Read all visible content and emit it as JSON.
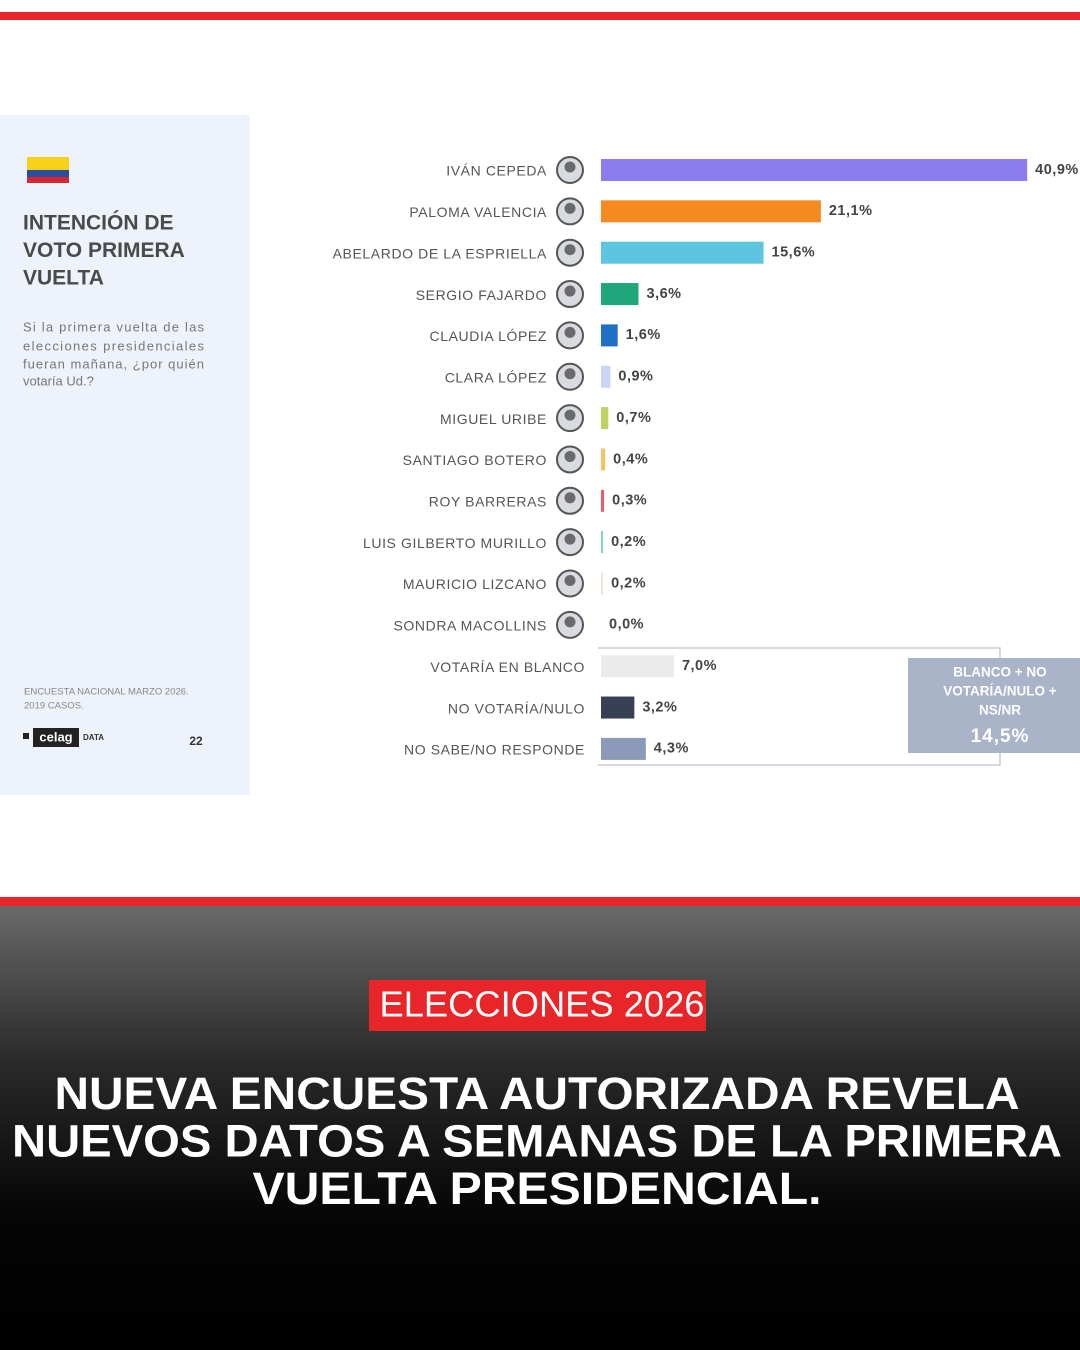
{
  "chart_data": {
    "type": "bar",
    "orientation": "horizontal",
    "categories": [
      "IVÁN CEPEDA",
      "PALOMA VALENCIA",
      "ABELARDO DE LA ESPRIELLA",
      "SERGIO FAJARDO",
      "CLAUDIA LÓPEZ",
      "CLARA LÓPEZ",
      "MIGUEL URIBE",
      "SANTIAGO BOTERO",
      "ROY BARRERAS",
      "LUIS GILBERTO MURILLO",
      "MAURICIO LIZCANO",
      "SONDRA MACOLLINS",
      "VOTARÍA EN BLANCO",
      "NO VOTARÍA/NULO",
      "NO SABE/NO RESPONDE"
    ],
    "values": [
      40.9,
      21.1,
      15.6,
      3.6,
      1.6,
      0.9,
      0.7,
      0.4,
      0.3,
      0.2,
      0.2,
      0.0,
      7.0,
      3.2,
      4.3
    ],
    "value_labels": [
      "40,9%",
      "21,1%",
      "15,6%",
      "3,6%",
      "1,6%",
      "0,9%",
      "0,7%",
      "0,4%",
      "0,3%",
      "0,2%",
      "0,2%",
      "0,0%",
      "7,0%",
      "3,2%",
      "4,3%"
    ],
    "colors": [
      "#8b7cf0",
      "#f58a1f",
      "#5cc6e0",
      "#1fa67a",
      "#1f6fc4",
      "#c9d5f5",
      "#bcd35f",
      "#f4c262",
      "#e0606f",
      "#86d3c2",
      "#f1e2d3",
      "#cccccc",
      "#ebebeb",
      "#374055",
      "#8a9ab8"
    ]
  },
  "panel": {
    "title_lines": [
      "INTENCIÓN DE",
      "VOTO PRIMERA",
      "VUELTA"
    ],
    "subtitle_lines": [
      "Si la primera vuelta de las",
      "elecciones presidenciales",
      "fueran mañana, ¿por quién",
      "votaría Ud.?"
    ],
    "source_lines": [
      "ENCUESTA NACIONAL MARZO 2026.",
      "2019 CASOS."
    ],
    "logo": "celag",
    "logo_suffix": "DATA",
    "page_number": "22"
  },
  "annotation": {
    "lines": [
      "BLANCO + NO",
      "VOTARÍA/NULO +",
      "NS/NR"
    ],
    "value_label": "14,5%"
  },
  "tag": "ELECCIONES 2026",
  "headline_lines": [
    "NUEVA ENCUESTA AUTORIZADA REVELA",
    "NUEVOS DATOS A SEMANAS DE LA PRIMERA",
    "VUELTA PRESIDENCIAL."
  ]
}
